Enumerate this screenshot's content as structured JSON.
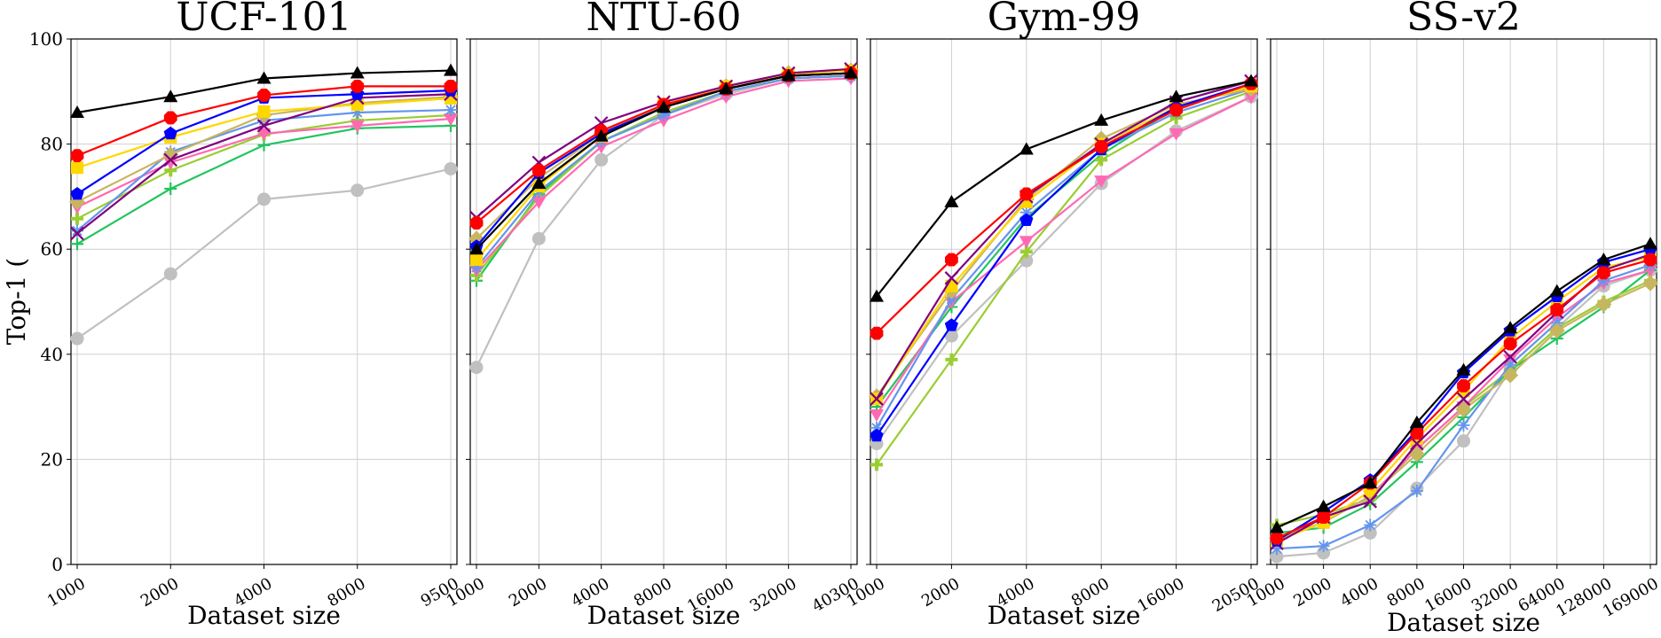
{
  "figure": {
    "ylabel": "Top-1 (",
    "yticks": [
      0,
      20,
      40,
      60,
      80,
      100
    ],
    "ylim": [
      0,
      100
    ],
    "grid": true
  },
  "chart_data": [
    {
      "type": "line",
      "title": "UCF-101",
      "xlabel": "Dataset size",
      "ylabel": "Top-1 (",
      "ylim": [
        0,
        100
      ],
      "x": [
        "1000",
        "2000",
        "4000",
        "8000",
        "9500"
      ],
      "series": [
        {
          "color": "#c0c0c0",
          "marker": "circle",
          "values": [
            43,
            55.3,
            69.5,
            71.2,
            75.3
          ]
        },
        {
          "color": "#22c55e",
          "marker": "plus",
          "values": [
            61,
            71.5,
            79.8,
            83,
            83.5
          ]
        },
        {
          "color": "#9acd32",
          "marker": "plusbold",
          "values": [
            65.8,
            75,
            81.8,
            84.5,
            85.5
          ]
        },
        {
          "color": "#ff69b4",
          "marker": "tri_down",
          "values": [
            68,
            76.5,
            82,
            83.5,
            84.8
          ]
        },
        {
          "color": "#6495ed",
          "marker": "star",
          "values": [
            63.5,
            78.5,
            84.5,
            86,
            86.5
          ]
        },
        {
          "color": "#c8b560",
          "marker": "diamond",
          "values": [
            69,
            78,
            85.5,
            87.8,
            89
          ]
        },
        {
          "color": "#ffd700",
          "marker": "square",
          "values": [
            75.5,
            81.3,
            86.2,
            87.5,
            88.7
          ]
        },
        {
          "color": "#800080",
          "marker": "x",
          "values": [
            63,
            77,
            83.5,
            88.8,
            89.5
          ]
        },
        {
          "color": "#0000ff",
          "marker": "pentagon",
          "values": [
            70.5,
            82,
            88.8,
            89.5,
            90.2
          ]
        },
        {
          "color": "#ff0000",
          "marker": "octagon",
          "values": [
            77.8,
            85,
            89.3,
            91,
            91
          ]
        },
        {
          "color": "#000000",
          "marker": "triangle",
          "values": [
            86,
            89,
            92.5,
            93.5,
            94
          ]
        }
      ]
    },
    {
      "type": "line",
      "title": "NTU-60",
      "xlabel": "Dataset size",
      "ylim": [
        0,
        100
      ],
      "x": [
        "1000",
        "2000",
        "4000",
        "8000",
        "16000",
        "32000",
        "40300"
      ],
      "series": [
        {
          "color": "#c0c0c0",
          "marker": "circle",
          "values": [
            37.5,
            62,
            77,
            85.5,
            89.5,
            92.5,
            93
          ]
        },
        {
          "color": "#22c55e",
          "marker": "plus",
          "values": [
            54,
            70.5,
            80.5,
            86,
            90,
            92.5,
            93
          ]
        },
        {
          "color": "#9acd32",
          "marker": "plusbold",
          "values": [
            55,
            70,
            80.5,
            86,
            90,
            92.5,
            93
          ]
        },
        {
          "color": "#ff69b4",
          "marker": "tri_down",
          "values": [
            56,
            69,
            79.5,
            84.5,
            89,
            92,
            92.5
          ]
        },
        {
          "color": "#6495ed",
          "marker": "star",
          "values": [
            56.5,
            71,
            80.5,
            85.5,
            90,
            92.5,
            93
          ]
        },
        {
          "color": "#c8b560",
          "marker": "diamond",
          "values": [
            62,
            73.5,
            82,
            87.5,
            91,
            93.5,
            94
          ]
        },
        {
          "color": "#ffd700",
          "marker": "square",
          "values": [
            58,
            72,
            81.5,
            87.5,
            91,
            93.3,
            94
          ]
        },
        {
          "color": "#800080",
          "marker": "x",
          "values": [
            66,
            76.5,
            84,
            88,
            91,
            93.5,
            94.3
          ]
        },
        {
          "color": "#0000ff",
          "marker": "pentagon",
          "values": [
            60.5,
            74.5,
            82,
            87,
            90.5,
            93,
            93.5
          ]
        },
        {
          "color": "#ff0000",
          "marker": "octagon",
          "values": [
            65,
            75,
            82.5,
            87.5,
            90.5,
            93,
            93.5
          ]
        },
        {
          "color": "#000000",
          "marker": "triangle",
          "values": [
            60,
            72.5,
            81.5,
            87,
            90.5,
            93,
            93.5
          ]
        }
      ]
    },
    {
      "type": "line",
      "title": "Gym-99",
      "xlabel": "Dataset size",
      "ylim": [
        0,
        100
      ],
      "x": [
        "1000",
        "2000",
        "4000",
        "8000",
        "16000",
        "20500"
      ],
      "series": [
        {
          "color": "#c0c0c0",
          "marker": "circle",
          "values": [
            23,
            43.5,
            57.8,
            72.5,
            82.5,
            89
          ]
        },
        {
          "color": "#22c55e",
          "marker": "plus",
          "values": [
            30,
            49,
            66,
            78,
            87,
            91
          ]
        },
        {
          "color": "#9acd32",
          "marker": "plusbold",
          "values": [
            19,
            39,
            59.5,
            77,
            85,
            90
          ]
        },
        {
          "color": "#ff69b4",
          "marker": "tri_down",
          "values": [
            28.5,
            50,
            61.5,
            73,
            82,
            89
          ]
        },
        {
          "color": "#6495ed",
          "marker": "star",
          "values": [
            26,
            50.5,
            67,
            79,
            86,
            90.5
          ]
        },
        {
          "color": "#c8b560",
          "marker": "diamond",
          "values": [
            32,
            52,
            69.5,
            81,
            87.5,
            90.5
          ]
        },
        {
          "color": "#ffd700",
          "marker": "square",
          "values": [
            31.5,
            53,
            69,
            80,
            87,
            91
          ]
        },
        {
          "color": "#800080",
          "marker": "x",
          "values": [
            31.5,
            54.5,
            70,
            80,
            88,
            92
          ]
        },
        {
          "color": "#0000ff",
          "marker": "pentagon",
          "values": [
            24.5,
            45.5,
            65.5,
            79,
            87,
            91.5
          ]
        },
        {
          "color": "#ff0000",
          "marker": "octagon",
          "values": [
            44,
            58,
            70.5,
            79.5,
            86.5,
            91.5
          ]
        },
        {
          "color": "#000000",
          "marker": "triangle",
          "values": [
            51,
            69,
            79,
            84.5,
            89,
            92
          ]
        }
      ]
    },
    {
      "type": "line",
      "title": "SS-v2",
      "xlabel": "Dataset size",
      "ylim": [
        0,
        100
      ],
      "x": [
        "1000",
        "2000",
        "4000",
        "8000",
        "16000",
        "32000",
        "64000",
        "128000",
        "169000"
      ],
      "series": [
        {
          "color": "#c0c0c0",
          "marker": "circle",
          "values": [
            1.5,
            2.2,
            6,
            14.5,
            23.5,
            37,
            45,
            53,
            56
          ]
        },
        {
          "color": "#22c55e",
          "marker": "plus",
          "values": [
            6,
            7,
            11.5,
            19.5,
            28,
            37,
            43,
            49,
            56
          ]
        },
        {
          "color": "#9acd32",
          "marker": "plusbold",
          "values": [
            7.5,
            9.5,
            12.5,
            22,
            30,
            37,
            45,
            50,
            54
          ]
        },
        {
          "color": "#ff69b4",
          "marker": "tri_down",
          "values": [
            4.5,
            8,
            13,
            22,
            30,
            39,
            47,
            53.5,
            56
          ]
        },
        {
          "color": "#6495ed",
          "marker": "star",
          "values": [
            3,
            3.5,
            7.5,
            14,
            26.5,
            38,
            46,
            54,
            57
          ]
        },
        {
          "color": "#c8b560",
          "marker": "diamond",
          "values": [
            5,
            8,
            13,
            21,
            29.5,
            36,
            44.5,
            49.5,
            53.5
          ]
        },
        {
          "color": "#ffd700",
          "marker": "square",
          "values": [
            4.5,
            8,
            14,
            24,
            33,
            43,
            50,
            56.5,
            58.5
          ]
        },
        {
          "color": "#800080",
          "marker": "x",
          "values": [
            4,
            9,
            12,
            23,
            31.5,
            39.5,
            48,
            56,
            59
          ]
        },
        {
          "color": "#0000ff",
          "marker": "pentagon",
          "values": [
            4.5,
            10,
            16,
            25.5,
            36.5,
            44.5,
            51,
            57.5,
            60
          ]
        },
        {
          "color": "#ff0000",
          "marker": "octagon",
          "values": [
            5,
            9,
            15.5,
            25,
            34,
            42,
            48.5,
            55.5,
            58
          ]
        },
        {
          "color": "#000000",
          "marker": "triangle",
          "values": [
            7,
            11,
            15.5,
            27,
            37,
            45,
            52,
            58,
            61
          ]
        }
      ]
    }
  ]
}
